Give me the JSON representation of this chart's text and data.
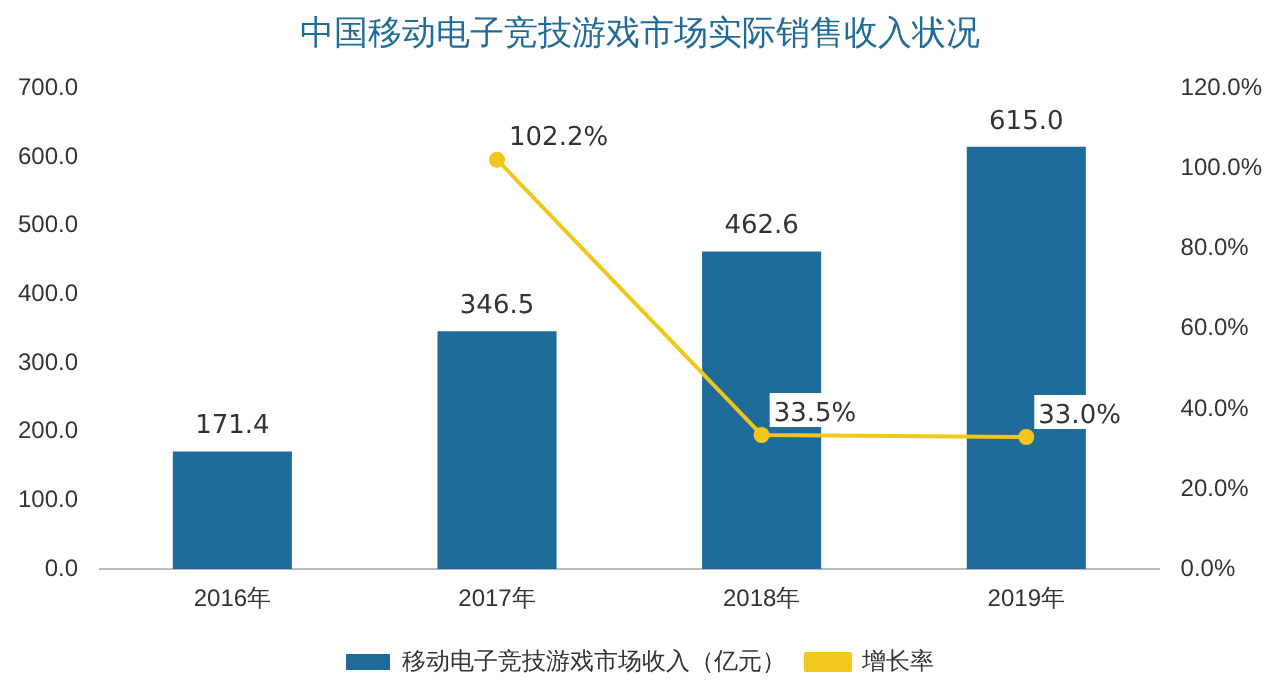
{
  "chart_data": {
    "type": "bar",
    "title": "中国移动电子竞技游戏市场实际销售收入状况",
    "categories": [
      "2016年",
      "2017年",
      "2018年",
      "2019年"
    ],
    "series": [
      {
        "name": "移动电子竞技游戏市场收入（亿元）",
        "color": "#1f6b9a",
        "values": [
          171.4,
          346.5,
          462.6,
          615.0
        ],
        "value_labels": [
          "171.4",
          "346.5",
          "462.6",
          "615.0"
        ]
      },
      {
        "name": "增长率",
        "type": "line",
        "axis": "y2",
        "color": "#f2c71b",
        "values": [
          null,
          102.2,
          33.5,
          33.0
        ],
        "value_labels": [
          null,
          "102.2%",
          "33.5%",
          "33.0%"
        ]
      }
    ],
    "ylim": [
      0,
      700
    ],
    "yticks": [
      {
        "value": 0,
        "label": "0.0"
      },
      {
        "value": 100,
        "label": "100.0"
      },
      {
        "value": 200,
        "label": "200.0"
      },
      {
        "value": 300,
        "label": "300.0"
      },
      {
        "value": 400,
        "label": "400.0"
      },
      {
        "value": 500,
        "label": "500.0"
      },
      {
        "value": 600,
        "label": "600.0"
      },
      {
        "value": 700,
        "label": "700.0"
      }
    ],
    "y2lim": [
      0,
      120
    ],
    "y2ticks": [
      {
        "value": 0,
        "label": "0.0%"
      },
      {
        "value": 20,
        "label": "20.0%"
      },
      {
        "value": 40,
        "label": "40.0%"
      },
      {
        "value": 60,
        "label": "60.0%"
      },
      {
        "value": 80,
        "label": "80.0%"
      },
      {
        "value": 100,
        "label": "100.0%"
      },
      {
        "value": 120,
        "label": "120.0%"
      }
    ],
    "grid": false,
    "legend": "bottom",
    "marker": "circle",
    "line_style": "solid"
  }
}
